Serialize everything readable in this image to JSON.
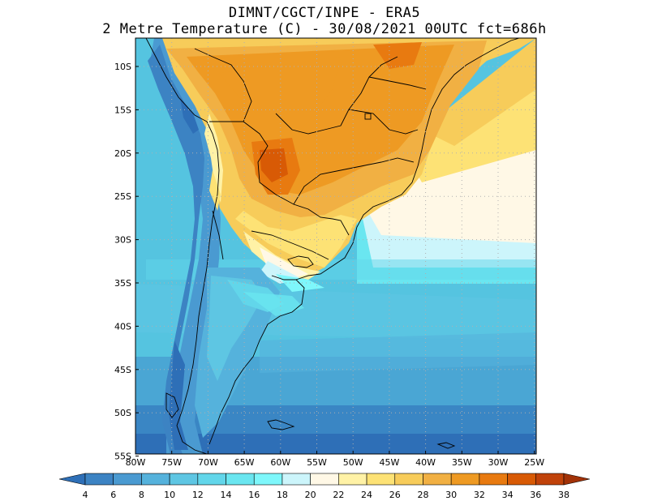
{
  "title": {
    "line1": "DIMNT/CGCT/INPE -  ERA5",
    "line2": "2 Metre Temperature (C) -  30/08/2021 00UTC fct=686h"
  },
  "map": {
    "lat_labels": [
      "10S",
      "15S",
      "20S",
      "25S",
      "30S",
      "35S",
      "40S",
      "45S",
      "50S",
      "55S"
    ],
    "lon_labels": [
      "80W",
      "75W",
      "70W",
      "65W",
      "60W",
      "55W",
      "50W",
      "45W",
      "40W",
      "35W",
      "30W",
      "25W"
    ],
    "gridlines": "dotted"
  },
  "colorbar": {
    "labels": [
      "4",
      "6",
      "8",
      "10",
      "12",
      "14",
      "16",
      "18",
      "20",
      "22",
      "24",
      "26",
      "28",
      "30",
      "32",
      "34",
      "36",
      "38"
    ],
    "colors": [
      "#2e6fb7",
      "#3c83c3",
      "#4a9ad1",
      "#55b2dc",
      "#5ec6e3",
      "#62d6ea",
      "#6ae6f0",
      "#7ef7fb",
      "#ccf5fb",
      "#fff8e6",
      "#fff2a6",
      "#fde275",
      "#f7cc5a",
      "#f1b043",
      "#ee9a23",
      "#e87a10",
      "#d85a05",
      "#c0420a",
      "#a23208"
    ]
  }
}
